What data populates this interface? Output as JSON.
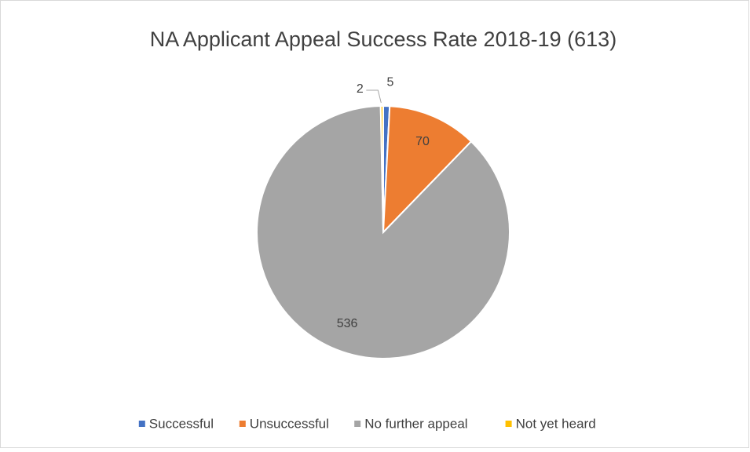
{
  "chart_data": {
    "type": "pie",
    "title": "NA Applicant Appeal Success Rate 2018-19 (613)",
    "categories": [
      "Successful",
      "Unsuccessful",
      "No further appeal",
      "Not yet heard"
    ],
    "values": [
      5,
      70,
      536,
      2
    ],
    "colors": [
      "#4472c4",
      "#ed7d31",
      "#a5a5a5",
      "#ffc000"
    ],
    "legend": "bottom"
  }
}
